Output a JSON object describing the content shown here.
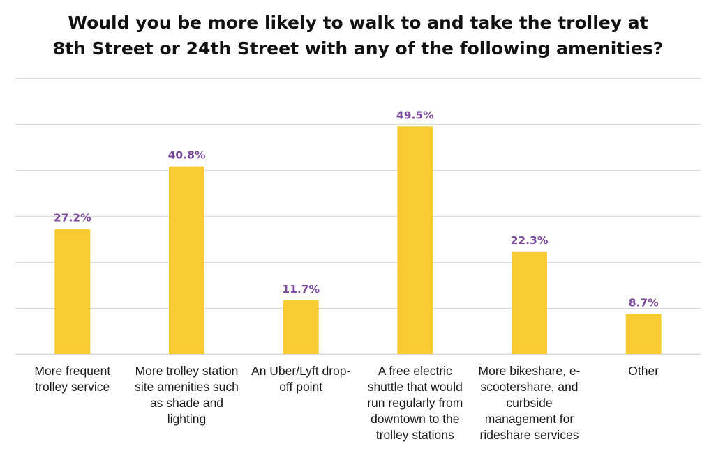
{
  "chart_data": {
    "type": "bar",
    "title": "Would you be more likely to walk to and take the trolley at 8th Street or 24th Street with any of the following amenities?",
    "title_lines": [
      "Would you be more likely to walk to and take the trolley at",
      "8th Street or 24th Street with any of the following amenities?"
    ],
    "categories": [
      "More frequent trolley service",
      "More trolley station site amenities such as shade and lighting",
      "An Uber/Lyft drop-off point",
      "A free electric shuttle that would run regularly from downtown to the trolley stations",
      "More bikeshare, e-scootershare, and curbside management for rideshare services",
      "Other"
    ],
    "category_lines": [
      [
        "More frequent",
        "trolley service"
      ],
      [
        "More trolley station",
        "site amenities such",
        "as shade and",
        "lighting"
      ],
      [
        "An Uber/Lyft drop-",
        "off point"
      ],
      [
        "A free electric",
        "shuttle that would",
        "run regularly from",
        "downtown to the",
        "trolley stations"
      ],
      [
        "More bikeshare, e-",
        "scootershare, and",
        "curbside",
        "management for",
        "rideshare services"
      ],
      [
        "Other"
      ]
    ],
    "values": [
      27.2,
      40.8,
      11.7,
      49.5,
      22.3,
      8.7
    ],
    "data_labels": [
      "27.2%",
      "40.8%",
      "11.7%",
      "49.5%",
      "22.3%",
      "8.7%"
    ],
    "unit": "%",
    "ylim": [
      0,
      60
    ],
    "gridline_step": 10,
    "grid": true,
    "xlabel": "",
    "ylabel": "",
    "colors": {
      "bar": "#F8CB32",
      "label": "#7B4A9E",
      "grid": "#D9D9D9"
    }
  }
}
